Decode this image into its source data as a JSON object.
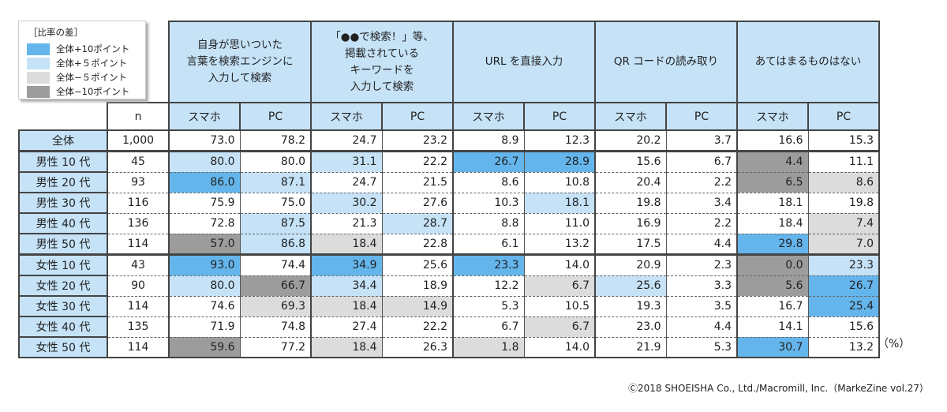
{
  "legend": {
    "title": "［比率の差］",
    "items": [
      {
        "label": "全体+10ポイント",
        "color": "#64b5ec"
      },
      {
        "label": "全体+５ポイント",
        "color": "#c5e2f7"
      },
      {
        "label": "全体−５ポイント",
        "color": "#dcdcdc"
      },
      {
        "label": "全体−10ポイント",
        "color": "#9c9c9c"
      }
    ]
  },
  "chart_data": {
    "type": "table",
    "groups": [
      "自身が思いついた\n言葉を検索エンジンに\n入力して検索",
      "「●●で検索！」等、\n掲載されている\nキーワードを\n入力して検索",
      "URL を直接入力",
      "QR コードの読み取り",
      "あてはまるものはない"
    ],
    "subheaders": [
      "スマホ",
      "PC"
    ],
    "n_header": "n",
    "rows": [
      {
        "label": "全体",
        "n": "1,000",
        "values": [
          "73.0",
          "78.2",
          "24.7",
          "23.2",
          "8.9",
          "12.3",
          "20.2",
          "3.7",
          "16.6",
          "15.3"
        ],
        "highlight": [
          "",
          "",
          "",
          "",
          "",
          "",
          "",
          "",
          "",
          ""
        ]
      },
      {
        "label": "男性 10 代",
        "n": "45",
        "values": [
          "80.0",
          "80.0",
          "31.1",
          "22.2",
          "26.7",
          "28.9",
          "15.6",
          "6.7",
          "4.4",
          "11.1"
        ],
        "highlight": [
          "b1",
          "",
          "b1",
          "",
          "b2",
          "b2",
          "",
          "",
          "g2",
          ""
        ]
      },
      {
        "label": "男性 20 代",
        "n": "93",
        "values": [
          "86.0",
          "87.1",
          "24.7",
          "21.5",
          "8.6",
          "10.8",
          "20.4",
          "2.2",
          "6.5",
          "8.6"
        ],
        "highlight": [
          "b2",
          "b1",
          "",
          "",
          "",
          "",
          "",
          "",
          "g2",
          "g1"
        ]
      },
      {
        "label": "男性 30 代",
        "n": "116",
        "values": [
          "75.9",
          "75.0",
          "30.2",
          "27.6",
          "10.3",
          "18.1",
          "19.8",
          "3.4",
          "18.1",
          "19.8"
        ],
        "highlight": [
          "",
          "",
          "b1",
          "",
          "",
          "b1",
          "",
          "",
          "",
          ""
        ]
      },
      {
        "label": "男性 40 代",
        "n": "136",
        "values": [
          "72.8",
          "87.5",
          "21.3",
          "28.7",
          "8.8",
          "11.0",
          "16.9",
          "2.2",
          "18.4",
          "7.4"
        ],
        "highlight": [
          "",
          "b1",
          "",
          "b1",
          "",
          "",
          "",
          "",
          "",
          "g1"
        ]
      },
      {
        "label": "男性 50 代",
        "n": "114",
        "values": [
          "57.0",
          "86.8",
          "18.4",
          "22.8",
          "6.1",
          "13.2",
          "17.5",
          "4.4",
          "29.8",
          "7.0"
        ],
        "highlight": [
          "g2",
          "b1",
          "g1",
          "",
          "",
          "",
          "",
          "",
          "b2",
          "g1"
        ]
      },
      {
        "label": "女性 10 代",
        "n": "43",
        "values": [
          "93.0",
          "74.4",
          "34.9",
          "25.6",
          "23.3",
          "14.0",
          "20.9",
          "2.3",
          "0.0",
          "23.3"
        ],
        "highlight": [
          "b2",
          "",
          "b2",
          "",
          "b2",
          "",
          "",
          "",
          "g2",
          "b1"
        ]
      },
      {
        "label": "女性 20 代",
        "n": "90",
        "values": [
          "80.0",
          "66.7",
          "34.4",
          "18.9",
          "12.2",
          "6.7",
          "25.6",
          "3.3",
          "5.6",
          "26.7"
        ],
        "highlight": [
          "b1",
          "g2",
          "b1",
          "",
          "",
          "g1",
          "b1",
          "",
          "g2",
          "b2"
        ]
      },
      {
        "label": "女性 30 代",
        "n": "114",
        "values": [
          "74.6",
          "69.3",
          "18.4",
          "14.9",
          "5.3",
          "10.5",
          "19.3",
          "3.5",
          "16.7",
          "25.4"
        ],
        "highlight": [
          "",
          "g1",
          "g1",
          "g1",
          "",
          "",
          "",
          "",
          "",
          "b2"
        ]
      },
      {
        "label": "女性 40 代",
        "n": "135",
        "values": [
          "71.9",
          "74.8",
          "27.4",
          "22.2",
          "6.7",
          "6.7",
          "23.0",
          "4.4",
          "14.1",
          "15.6"
        ],
        "highlight": [
          "",
          "",
          "",
          "",
          "",
          "g1",
          "",
          "",
          "",
          ""
        ]
      },
      {
        "label": "女性 50 代",
        "n": "114",
        "values": [
          "59.6",
          "77.2",
          "18.4",
          "26.3",
          "1.8",
          "14.0",
          "21.9",
          "5.3",
          "30.7",
          "13.2"
        ],
        "highlight": [
          "g2",
          "",
          "g1",
          "",
          "g1",
          "",
          "",
          "",
          "b2",
          ""
        ]
      }
    ],
    "unit": "（%）"
  },
  "footer": {
    "copyright": "Ⓒ2018 SHOEISHA Co., Ltd./Macromill, Inc.（MarkeZine vol.27）"
  }
}
